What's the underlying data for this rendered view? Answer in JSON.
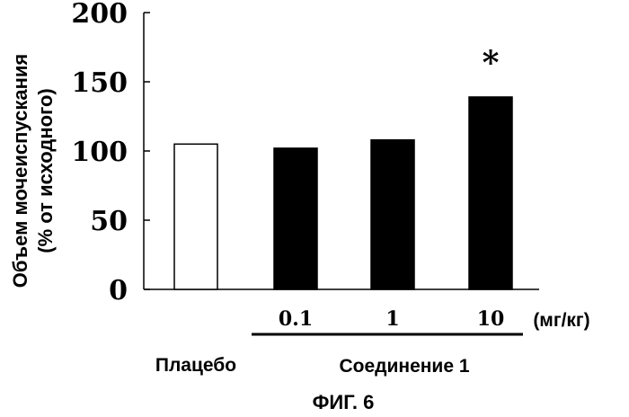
{
  "chart_data": {
    "type": "bar",
    "categories": [
      "placebo",
      "0.1",
      "1",
      "10"
    ],
    "values": [
      105,
      102,
      108,
      139
    ],
    "fills": [
      "#ffffff",
      "#000000",
      "#000000",
      "#000000"
    ],
    "ylim": [
      0,
      200
    ],
    "yticks": [
      "0",
      "50",
      "100",
      "150",
      "200"
    ],
    "ylabel_line1": "Объем мочеиспускания",
    "ylabel_line2": "(% от исходного)",
    "dose_labels": [
      "0.1",
      "1",
      "10"
    ],
    "unit_label": "(мг/кг)",
    "placebo_label": "Плацебо",
    "compound_label": "Соединение 1",
    "significance_marker": "*",
    "figure_label": "ФИГ. 6",
    "grid": false
  }
}
